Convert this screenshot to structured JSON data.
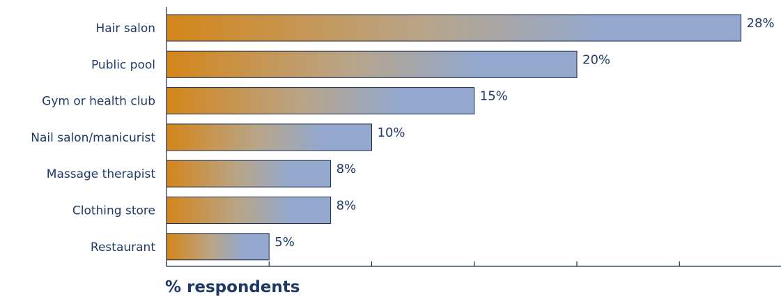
{
  "chart_data": {
    "type": "bar",
    "orientation": "horizontal",
    "categories": [
      "Hair salon",
      "Public pool",
      "Gym or health club",
      "Nail salon/manicurist",
      "Massage therapist",
      "Clothing store",
      "Restaurant"
    ],
    "values": [
      28,
      20,
      15,
      10,
      8,
      8,
      5
    ],
    "value_labels": [
      "28%",
      "20%",
      "15%",
      "10%",
      "8%",
      "8%",
      "5%"
    ],
    "xlabel": "% respondents",
    "ylabel": "",
    "xlim": [
      0,
      30
    ],
    "x_ticks": [
      0,
      5,
      10,
      15,
      20,
      25,
      30
    ],
    "grid": false,
    "legend": "none",
    "colors": {
      "bar_gradient_start": "#d4861a",
      "bar_gradient_mid": "#b8a58a",
      "bar_gradient_end": "#93a8cc",
      "bar_border": "#1a2a4a",
      "text": "#1f3a66",
      "axis": "#1a2a4a"
    }
  }
}
